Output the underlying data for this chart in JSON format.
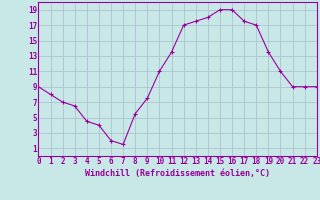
{
  "x": [
    0,
    1,
    2,
    3,
    4,
    5,
    6,
    7,
    8,
    9,
    10,
    11,
    12,
    13,
    14,
    15,
    16,
    17,
    18,
    19,
    20,
    21,
    22,
    23
  ],
  "y": [
    9,
    8,
    7,
    6.5,
    4.5,
    4,
    2,
    1.5,
    5.5,
    7.5,
    11,
    13.5,
    17,
    17.5,
    18,
    19,
    19,
    17.5,
    17,
    13.5,
    11,
    9,
    9,
    9
  ],
  "line_color": "#990099",
  "marker": "+",
  "bg_color": "#c8e8e8",
  "grid_color": "#aabbcc",
  "xlabel": "Windchill (Refroidissement éolien,°C)",
  "xlim": [
    0,
    23
  ],
  "ylim": [
    0,
    20
  ],
  "yticks": [
    1,
    3,
    5,
    7,
    9,
    11,
    13,
    15,
    17,
    19
  ],
  "xticks": [
    0,
    1,
    2,
    3,
    4,
    5,
    6,
    7,
    8,
    9,
    10,
    11,
    12,
    13,
    14,
    15,
    16,
    17,
    18,
    19,
    20,
    21,
    22,
    23
  ],
  "label_fontsize": 6,
  "tick_fontsize": 5.5
}
